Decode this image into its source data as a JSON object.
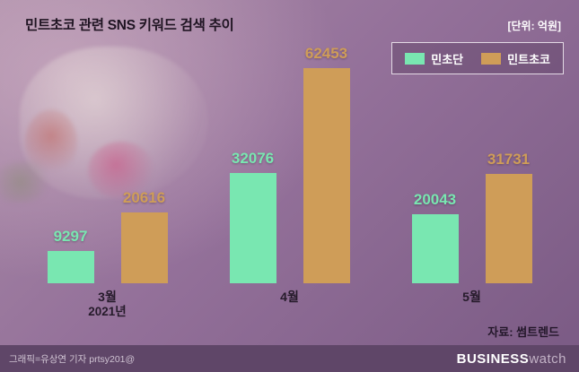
{
  "header": {
    "title": "민트초코 관련 SNS 키워드 검색 추이",
    "unit": "[단위: 억원]"
  },
  "legend": [
    {
      "label": "민초단",
      "color": "#79e7b1"
    },
    {
      "label": "민트초코",
      "color": "#cf9d58"
    }
  ],
  "chart_data": {
    "type": "bar",
    "categories": [
      "3월",
      "4월",
      "5월"
    ],
    "x_sublabel": "2021년",
    "series": [
      {
        "name": "민초단",
        "color": "#79e7b1",
        "values": [
          9297,
          32076,
          20043
        ]
      },
      {
        "name": "민트초코",
        "color": "#cf9d58",
        "values": [
          20616,
          62453,
          31731
        ]
      }
    ],
    "title": "민트초코 관련 SNS 키워드 검색 추이",
    "xlabel": "",
    "ylabel": "[단위: 억원]",
    "ylim": [
      0,
      65000
    ],
    "grid": false,
    "legend_position": "top-right",
    "value_labels": true
  },
  "source": {
    "label": "자료: 썸트렌드"
  },
  "footer": {
    "credit": "그래픽=유상연 기자 prtsy201@",
    "brand_bold": "BUSINESS",
    "brand_light": "watch"
  }
}
